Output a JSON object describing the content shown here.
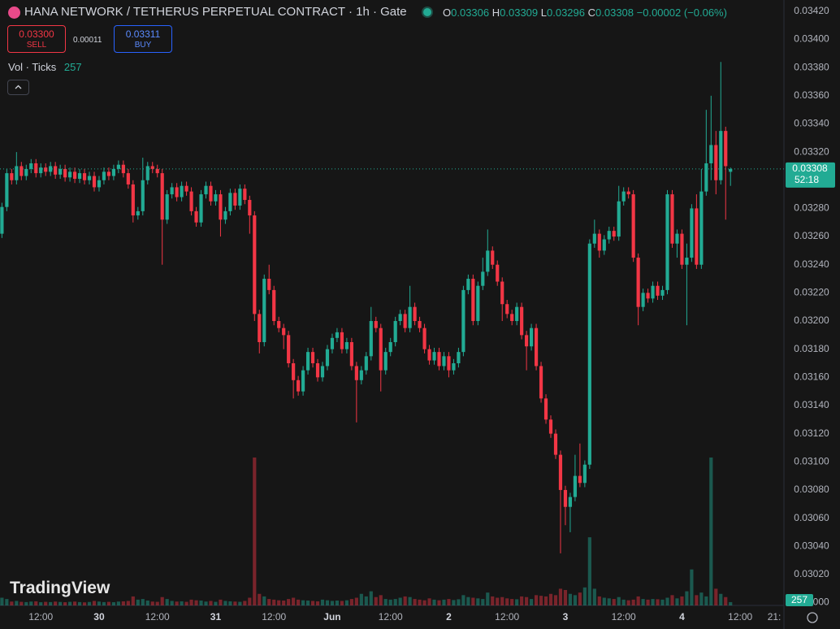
{
  "chart_data": {
    "type": "candlestick",
    "title": "HANA NETWORK / TETHERUS PERPETUAL CONTRACT · 1h · Gate",
    "legend_labels": [
      "O",
      "H",
      "L",
      "C"
    ],
    "change_label": "−0.00002 (−0.06%)",
    "volume_title": "Vol · Ticks",
    "countdown": "52:18",
    "up_color": "#22ab94",
    "down_color": "#f23645",
    "grid": false,
    "xlim": [
      -0.4,
      161
    ],
    "xticks": [
      {
        "value": 8,
        "label": "12:00"
      },
      {
        "value": 20,
        "label": "30"
      },
      {
        "value": 32,
        "label": "12:00"
      },
      {
        "value": 44,
        "label": "31"
      },
      {
        "value": 56,
        "label": "12:00"
      },
      {
        "value": 68,
        "label": "Jun"
      },
      {
        "value": 80,
        "label": "12:00"
      },
      {
        "value": 92,
        "label": "2"
      },
      {
        "value": 104,
        "label": "12:00"
      },
      {
        "value": 116,
        "label": "3"
      },
      {
        "value": 128,
        "label": "12:00"
      },
      {
        "value": 140,
        "label": "4"
      },
      {
        "value": 152,
        "label": "12:00"
      },
      {
        "value": 159,
        "label": "21:"
      }
    ],
    "ylim": [
      0.02998,
      0.03428
    ],
    "yticks": [
      {
        "value": 0.0342,
        "label": "0.03420"
      },
      {
        "value": 0.034,
        "label": "0.03400"
      },
      {
        "value": 0.0338,
        "label": "0.03380"
      },
      {
        "value": 0.0336,
        "label": "0.03360"
      },
      {
        "value": 0.0334,
        "label": "0.03340"
      },
      {
        "value": 0.0332,
        "label": "0.03320"
      },
      {
        "value": 0.033,
        "label": "0.03300"
      },
      {
        "value": 0.0328,
        "label": "0.03280"
      },
      {
        "value": 0.0326,
        "label": "0.03260"
      },
      {
        "value": 0.0324,
        "label": "0.03240"
      },
      {
        "value": 0.0322,
        "label": "0.03220"
      },
      {
        "value": 0.032,
        "label": "0.03200"
      },
      {
        "value": 0.0318,
        "label": "0.03180"
      },
      {
        "value": 0.0316,
        "label": "0.03160"
      },
      {
        "value": 0.0314,
        "label": "0.03140"
      },
      {
        "value": 0.0312,
        "label": "0.03120"
      },
      {
        "value": 0.031,
        "label": "0.03100"
      },
      {
        "value": 0.0308,
        "label": "0.03080"
      },
      {
        "value": 0.0306,
        "label": "0.03060"
      },
      {
        "value": 0.0304,
        "label": "0.03040"
      },
      {
        "value": 0.0302,
        "label": "0.03020"
      },
      {
        "value": 0.03,
        "label": "0.03000"
      }
    ],
    "open": [
      0.03262,
      0.03281,
      0.03305,
      0.033,
      0.0331,
      0.03303,
      0.03308,
      0.03312,
      0.03305,
      0.03309,
      0.03306,
      0.0331,
      0.03304,
      0.03308,
      0.03302,
      0.03306,
      0.03301,
      0.03305,
      0.033,
      0.03303,
      0.03295,
      0.033,
      0.03306,
      0.03303,
      0.03308,
      0.03311,
      0.03305,
      0.03297,
      0.03275,
      0.03278,
      0.033,
      0.0331,
      0.03308,
      0.03305,
      0.03272,
      0.0329,
      0.03295,
      0.03288,
      0.03296,
      0.03292,
      0.03278,
      0.0327,
      0.0329,
      0.03296,
      0.03285,
      0.0329,
      0.03272,
      0.03278,
      0.03291,
      0.03282,
      0.03294,
      0.03286,
      0.03275,
      0.03205,
      0.03185,
      0.0323,
      0.03222,
      0.032,
      0.03195,
      0.0319,
      0.0317,
      0.03158,
      0.0315,
      0.03165,
      0.03178,
      0.0317,
      0.0316,
      0.03168,
      0.0318,
      0.03188,
      0.03192,
      0.0318,
      0.03185,
      0.03168,
      0.03158,
      0.03165,
      0.03175,
      0.032,
      0.03195,
      0.03165,
      0.03178,
      0.03185,
      0.032,
      0.03205,
      0.03195,
      0.0321,
      0.032,
      0.03195,
      0.0318,
      0.03172,
      0.03178,
      0.03168,
      0.03175,
      0.03165,
      0.0317,
      0.03178,
      0.03222,
      0.0323,
      0.032,
      0.03225,
      0.03235,
      0.0325,
      0.0324,
      0.03228,
      0.03212,
      0.03205,
      0.032,
      0.0321,
      0.0319,
      0.03182,
      0.03195,
      0.03168,
      0.03145,
      0.0313,
      0.0312,
      0.03105,
      0.0308,
      0.03068,
      0.03075,
      0.0309,
      0.03085,
      0.03098,
      0.03255,
      0.03262,
      0.0325,
      0.03258,
      0.03264,
      0.0326,
      0.03285,
      0.03292,
      0.0329,
      0.03245,
      0.0321,
      0.0322,
      0.03216,
      0.03225,
      0.03218,
      0.03222,
      0.0329,
      0.03255,
      0.03262,
      0.0324,
      0.03245,
      0.0328,
      0.0324,
      0.03292,
      0.03312,
      0.03325,
      0.033,
      0.03335,
      0.03306
    ],
    "high": [
      0.03284,
      0.03308,
      0.03308,
      0.0332,
      0.03313,
      0.03311,
      0.03315,
      0.03315,
      0.03312,
      0.03312,
      0.03313,
      0.03313,
      0.03311,
      0.03311,
      0.03309,
      0.03309,
      0.03308,
      0.03308,
      0.03306,
      0.03306,
      0.03303,
      0.03309,
      0.03309,
      0.03311,
      0.03314,
      0.03314,
      0.03308,
      0.033,
      0.03281,
      0.03316,
      0.03313,
      0.03313,
      0.03311,
      0.03308,
      0.03293,
      0.03298,
      0.03298,
      0.03299,
      0.03299,
      0.03295,
      0.03281,
      0.03293,
      0.03299,
      0.03299,
      0.03293,
      0.03293,
      0.03281,
      0.03294,
      0.03294,
      0.03297,
      0.03297,
      0.03289,
      0.03278,
      0.03208,
      0.03233,
      0.0324,
      0.03225,
      0.03203,
      0.03198,
      0.03193,
      0.03173,
      0.03161,
      0.03168,
      0.03181,
      0.03181,
      0.03173,
      0.03171,
      0.03183,
      0.03191,
      0.03195,
      0.03195,
      0.03188,
      0.03188,
      0.03171,
      0.03168,
      0.03178,
      0.0321,
      0.03203,
      0.03198,
      0.03181,
      0.03188,
      0.03203,
      0.03208,
      0.03208,
      0.03225,
      0.03213,
      0.03203,
      0.03198,
      0.03183,
      0.03181,
      0.03181,
      0.03178,
      0.03178,
      0.03173,
      0.03181,
      0.03225,
      0.03233,
      0.03233,
      0.03228,
      0.03245,
      0.03265,
      0.03253,
      0.03243,
      0.03231,
      0.03215,
      0.03208,
      0.03213,
      0.03213,
      0.03193,
      0.03198,
      0.03198,
      0.03171,
      0.03148,
      0.03133,
      0.03123,
      0.03108,
      0.03083,
      0.03078,
      0.03105,
      0.03113,
      0.03101,
      0.03258,
      0.03272,
      0.03265,
      0.03261,
      0.03267,
      0.03267,
      0.03296,
      0.03295,
      0.03295,
      0.03293,
      0.03248,
      0.03223,
      0.03223,
      0.03228,
      0.03228,
      0.03225,
      0.03293,
      0.03293,
      0.03265,
      0.03265,
      0.03255,
      0.03283,
      0.0329,
      0.03308,
      0.0335,
      0.0336,
      0.03335,
      0.03384,
      0.03338,
      0.03309
    ],
    "low": [
      0.03259,
      0.03278,
      0.03297,
      0.03297,
      0.033,
      0.033,
      0.03305,
      0.03302,
      0.03302,
      0.03303,
      0.03303,
      0.03301,
      0.03301,
      0.03299,
      0.03299,
      0.03298,
      0.03298,
      0.03297,
      0.03297,
      0.03292,
      0.03292,
      0.03297,
      0.033,
      0.033,
      0.03305,
      0.03302,
      0.03294,
      0.0327,
      0.03272,
      0.03275,
      0.03297,
      0.03305,
      0.03302,
      0.0324,
      0.03269,
      0.03287,
      0.03285,
      0.03285,
      0.03289,
      0.03275,
      0.03267,
      0.03267,
      0.03287,
      0.03282,
      0.03282,
      0.0326,
      0.03269,
      0.03275,
      0.03279,
      0.03279,
      0.03283,
      0.03262,
      0.032,
      0.03177,
      0.03182,
      0.03219,
      0.03197,
      0.03192,
      0.0318,
      0.03167,
      0.03145,
      0.03147,
      0.03147,
      0.03162,
      0.03167,
      0.03157,
      0.03157,
      0.03165,
      0.03177,
      0.03185,
      0.03177,
      0.03177,
      0.03165,
      0.03128,
      0.03155,
      0.03162,
      0.03172,
      0.03192,
      0.0315,
      0.03162,
      0.03175,
      0.03182,
      0.03197,
      0.03192,
      0.03192,
      0.03197,
      0.03192,
      0.03177,
      0.03169,
      0.03169,
      0.03165,
      0.03165,
      0.0316,
      0.03162,
      0.03167,
      0.03175,
      0.03219,
      0.03197,
      0.03197,
      0.03222,
      0.03232,
      0.03237,
      0.03225,
      0.032,
      0.03202,
      0.03197,
      0.03197,
      0.03187,
      0.03165,
      0.03179,
      0.03165,
      0.03142,
      0.03127,
      0.03117,
      0.03102,
      0.03035,
      0.03055,
      0.0305,
      0.03072,
      0.03082,
      0.03082,
      0.03095,
      0.03252,
      0.03245,
      0.03247,
      0.03255,
      0.03257,
      0.03257,
      0.03282,
      0.03287,
      0.03242,
      0.03197,
      0.03207,
      0.03213,
      0.03213,
      0.03215,
      0.03215,
      0.03219,
      0.03252,
      0.03245,
      0.03237,
      0.03197,
      0.03242,
      0.03237,
      0.03237,
      0.03289,
      0.033,
      0.0329,
      0.03297,
      0.03272,
      0.03296
    ],
    "close": [
      0.03281,
      0.03305,
      0.033,
      0.0331,
      0.03303,
      0.03308,
      0.03312,
      0.03305,
      0.03309,
      0.03306,
      0.0331,
      0.03304,
      0.03308,
      0.03302,
      0.03306,
      0.03301,
      0.03305,
      0.033,
      0.03303,
      0.03295,
      0.033,
      0.03306,
      0.03303,
      0.03308,
      0.03311,
      0.03305,
      0.03297,
      0.03275,
      0.03278,
      0.033,
      0.0331,
      0.03308,
      0.03305,
      0.03272,
      0.0329,
      0.03295,
      0.03288,
      0.03296,
      0.03292,
      0.03278,
      0.0327,
      0.0329,
      0.03296,
      0.03285,
      0.0329,
      0.03272,
      0.03278,
      0.03291,
      0.03282,
      0.03294,
      0.03286,
      0.03275,
      0.03205,
      0.03185,
      0.0323,
      0.03222,
      0.032,
      0.03195,
      0.0319,
      0.0317,
      0.03158,
      0.0315,
      0.03165,
      0.03178,
      0.0317,
      0.0316,
      0.03168,
      0.0318,
      0.03188,
      0.03192,
      0.0318,
      0.03185,
      0.03168,
      0.03158,
      0.03165,
      0.03175,
      0.032,
      0.03195,
      0.03165,
      0.03178,
      0.03185,
      0.032,
      0.03205,
      0.03195,
      0.0321,
      0.032,
      0.03195,
      0.0318,
      0.03172,
      0.03178,
      0.03168,
      0.03175,
      0.03165,
      0.0317,
      0.03178,
      0.03222,
      0.0323,
      0.032,
      0.03225,
      0.03235,
      0.0325,
      0.0324,
      0.03228,
      0.03212,
      0.03205,
      0.032,
      0.0321,
      0.0319,
      0.03182,
      0.03195,
      0.03168,
      0.03145,
      0.0313,
      0.0312,
      0.03105,
      0.0308,
      0.03068,
      0.03075,
      0.0309,
      0.03085,
      0.03098,
      0.03255,
      0.03262,
      0.0325,
      0.03258,
      0.03264,
      0.0326,
      0.03285,
      0.03292,
      0.0329,
      0.03245,
      0.0321,
      0.0322,
      0.03216,
      0.03225,
      0.03218,
      0.03222,
      0.0329,
      0.03255,
      0.03262,
      0.0324,
      0.03245,
      0.0328,
      0.0324,
      0.03292,
      0.03312,
      0.03325,
      0.033,
      0.03335,
      0.0331,
      0.03308
    ],
    "volume": [
      600,
      500,
      300,
      350,
      280,
      260,
      300,
      320,
      250,
      280,
      260,
      300,
      270,
      250,
      280,
      300,
      260,
      240,
      270,
      350,
      300,
      260,
      280,
      250,
      300,
      320,
      350,
      700,
      450,
      500,
      380,
      300,
      280,
      650,
      500,
      350,
      300,
      320,
      280,
      450,
      400,
      380,
      300,
      350,
      280,
      450,
      350,
      320,
      300,
      280,
      350,
      600,
      11500,
      900,
      700,
      500,
      450,
      400,
      380,
      500,
      600,
      450,
      400,
      380,
      350,
      320,
      450,
      400,
      350,
      380,
      350,
      400,
      500,
      600,
      900,
      700,
      1100,
      650,
      800,
      500,
      450,
      500,
      600,
      700,
      650,
      500,
      450,
      400,
      550,
      450,
      400,
      450,
      500,
      420,
      480,
      800,
      650,
      600,
      550,
      500,
      1000,
      700,
      600,
      650,
      550,
      500,
      480,
      700,
      650,
      500,
      800,
      750,
      700,
      900,
      800,
      1300,
      1200,
      900,
      800,
      1000,
      1400,
      5300,
      1300,
      700,
      600,
      550,
      500,
      650,
      450,
      400,
      450,
      700,
      500,
      450,
      500,
      480,
      450,
      600,
      800,
      550,
      700,
      1100,
      2800,
      800,
      1000,
      700,
      11500,
      1300,
      900,
      650,
      257
    ]
  },
  "trade": {
    "sell_price": "0.03300",
    "sell_label": "SELL",
    "spread": "0.00011",
    "buy_price": "0.03311",
    "buy_label": "BUY"
  },
  "watermark": "TradingView"
}
